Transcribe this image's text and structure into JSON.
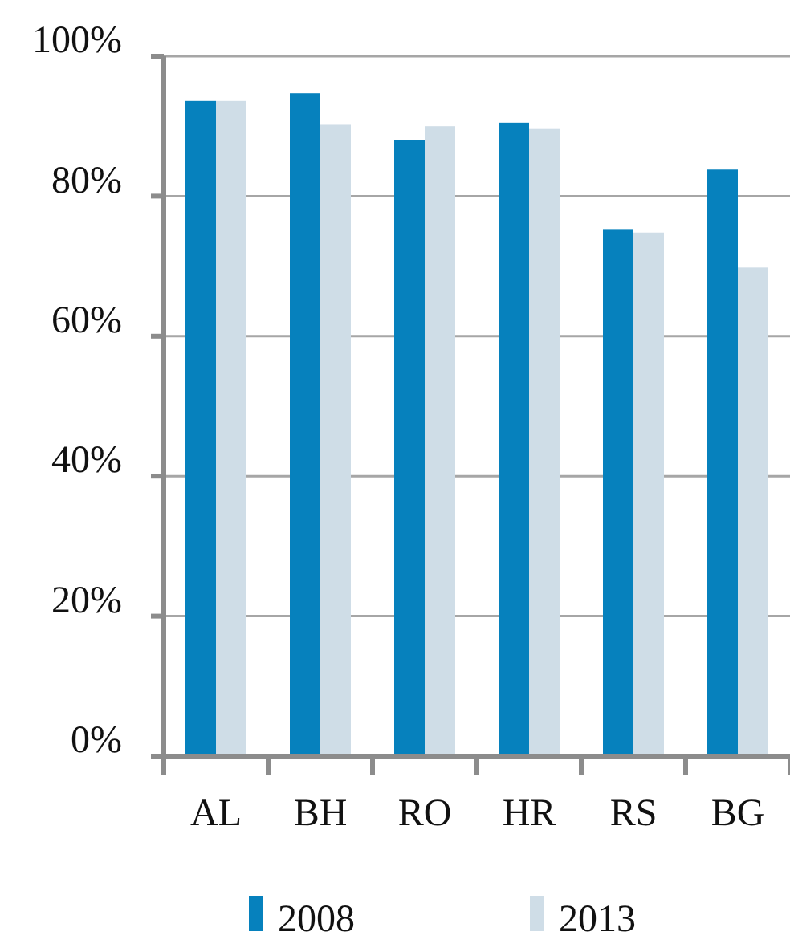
{
  "chart_data": {
    "type": "bar",
    "categories": [
      "AL",
      "BH",
      "RO",
      "HR",
      "RS",
      "BG"
    ],
    "series": [
      {
        "name": "2008",
        "color": "#0681bd",
        "values": [
          93.6,
          94.7,
          88.0,
          90.5,
          75.3,
          83.8
        ]
      },
      {
        "name": "2013",
        "color": "#cfdde7",
        "values": [
          93.6,
          90.2,
          90.0,
          89.6,
          74.8,
          69.8
        ]
      }
    ],
    "ylim": [
      0,
      100
    ],
    "yticks": [
      {
        "value": 0,
        "label": "0%"
      },
      {
        "value": 20,
        "label": "20%"
      },
      {
        "value": 40,
        "label": "40%"
      },
      {
        "value": 60,
        "label": "60%"
      },
      {
        "value": 80,
        "label": "80%"
      },
      {
        "value": 100,
        "label": "100%"
      }
    ],
    "grid": "y",
    "legend": "bottom"
  }
}
